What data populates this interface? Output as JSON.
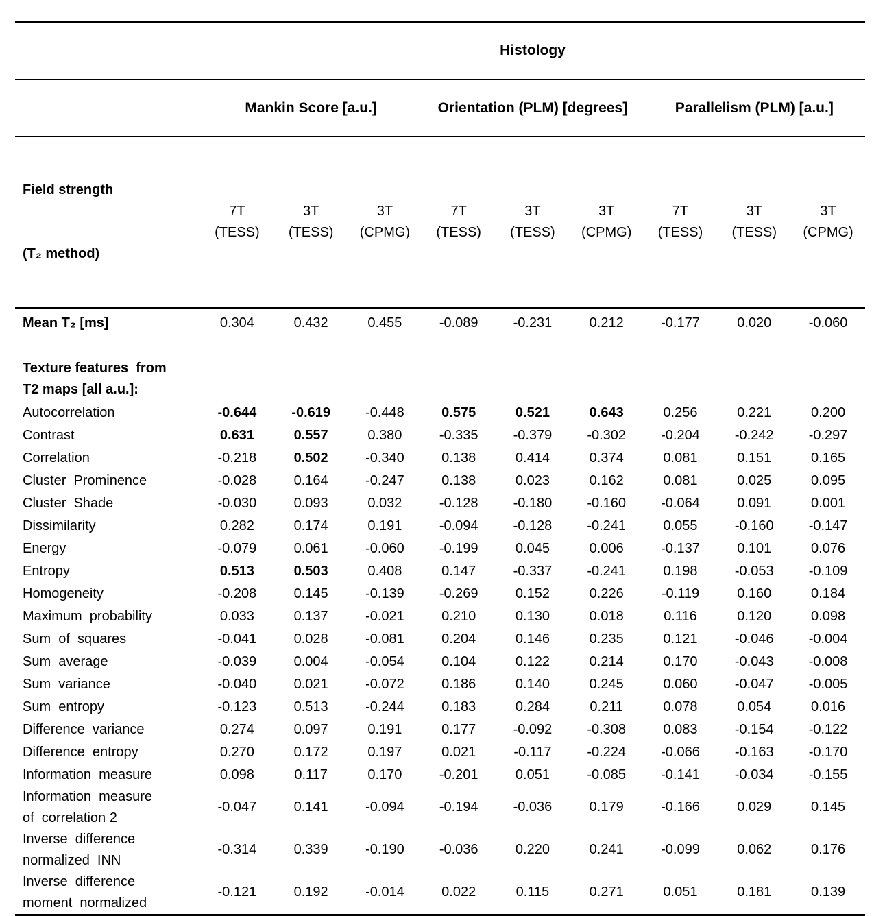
{
  "table": {
    "title": "Histology",
    "groups": [
      {
        "label": "Mankin Score [a.u.]"
      },
      {
        "label": "Orientation (PLM) [degrees]"
      },
      {
        "label": "Parallelism (PLM) [a.u.]"
      }
    ],
    "row_header": [
      "Field strength",
      "(T₂ method)"
    ],
    "columns": [
      {
        "line1": "7T",
        "line2": "(TESS)"
      },
      {
        "line1": "3T",
        "line2": "(TESS)"
      },
      {
        "line1": "3T",
        "line2": "(CPMG)"
      },
      {
        "line1": "7T",
        "line2": "(TESS)"
      },
      {
        "line1": "3T",
        "line2": "(TESS)"
      },
      {
        "line1": "3T",
        "line2": "(CPMG)"
      },
      {
        "line1": "7T",
        "line2": "(TESS)"
      },
      {
        "line1": "3T",
        "line2": "(TESS)"
      },
      {
        "line1": "3T",
        "line2": "(CPMG)"
      }
    ],
    "mean_row": {
      "label": "Mean T₂ [ms]",
      "values": [
        "0.304",
        "0.432",
        "0.455",
        "-0.089",
        "-0.231",
        "0.212",
        "-0.177",
        "0.020",
        "-0.060"
      ]
    },
    "section_header": [
      "Texture features  from",
      "T2 maps [all a.u.]:"
    ],
    "rows": [
      {
        "label": "Autocorrelation",
        "values": [
          "-0.644",
          "-0.619",
          "-0.448",
          "0.575",
          "0.521",
          "0.643",
          "0.256",
          "0.221",
          "0.200"
        ],
        "bold": [
          0,
          1,
          3,
          4,
          5
        ]
      },
      {
        "label": "Contrast",
        "values": [
          "0.631",
          "0.557",
          "0.380",
          "-0.335",
          "-0.379",
          "-0.302",
          "-0.204",
          "-0.242",
          "-0.297"
        ],
        "bold": [
          0,
          1
        ]
      },
      {
        "label": "Correlation",
        "values": [
          "-0.218",
          "0.502",
          "-0.340",
          "0.138",
          "0.414",
          "0.374",
          "0.081",
          "0.151",
          "0.165"
        ],
        "bold": [
          1
        ]
      },
      {
        "label": "Cluster  Prominence",
        "values": [
          "-0.028",
          "0.164",
          "-0.247",
          "0.138",
          "0.023",
          "0.162",
          "0.081",
          "0.025",
          "0.095"
        ]
      },
      {
        "label": "Cluster  Shade",
        "values": [
          "-0.030",
          "0.093",
          "0.032",
          "-0.128",
          "-0.180",
          "-0.160",
          "-0.064",
          "0.091",
          "0.001"
        ]
      },
      {
        "label": "Dissimilarity",
        "values": [
          "0.282",
          "0.174",
          "0.191",
          "-0.094",
          "-0.128",
          "-0.241",
          "0.055",
          "-0.160",
          "-0.147"
        ]
      },
      {
        "label": "Energy",
        "values": [
          "-0.079",
          "0.061",
          "-0.060",
          "-0.199",
          "0.045",
          "0.006",
          "-0.137",
          "0.101",
          "0.076"
        ]
      },
      {
        "label": "Entropy",
        "values": [
          "0.513",
          "0.503",
          "0.408",
          "0.147",
          "-0.337",
          "-0.241",
          "0.198",
          "-0.053",
          "-0.109"
        ],
        "bold": [
          0,
          1
        ]
      },
      {
        "label": "Homogeneity",
        "values": [
          "-0.208",
          "0.145",
          "-0.139",
          "-0.269",
          "0.152",
          "0.226",
          "-0.119",
          "0.160",
          "0.184"
        ]
      },
      {
        "label": "Maximum  probability",
        "values": [
          "0.033",
          "0.137",
          "-0.021",
          "0.210",
          "0.130",
          "0.018",
          "0.116",
          "0.120",
          "0.098"
        ]
      },
      {
        "label": "Sum  of  squares",
        "values": [
          "-0.041",
          "0.028",
          "-0.081",
          "0.204",
          "0.146",
          "0.235",
          "0.121",
          "-0.046",
          "-0.004"
        ]
      },
      {
        "label": "Sum  average",
        "values": [
          "-0.039",
          "0.004",
          "-0.054",
          "0.104",
          "0.122",
          "0.214",
          "0.170",
          "-0.043",
          "-0.008"
        ]
      },
      {
        "label": "Sum  variance",
        "values": [
          "-0.040",
          "0.021",
          "-0.072",
          "0.186",
          "0.140",
          "0.245",
          "0.060",
          "-0.047",
          "-0.005"
        ]
      },
      {
        "label": "Sum  entropy",
        "values": [
          "-0.123",
          "0.513",
          "-0.244",
          "0.183",
          "0.284",
          "0.211",
          "0.078",
          "0.054",
          "0.016"
        ]
      },
      {
        "label": "Difference  variance",
        "values": [
          "0.274",
          "0.097",
          "0.191",
          "0.177",
          "-0.092",
          "-0.308",
          "0.083",
          "-0.154",
          "-0.122"
        ]
      },
      {
        "label": "Difference  entropy",
        "values": [
          "0.270",
          "0.172",
          "0.197",
          "0.021",
          "-0.117",
          "-0.224",
          "-0.066",
          "-0.163",
          "-0.170"
        ]
      },
      {
        "label": "Information  measure",
        "values": [
          "0.098",
          "0.117",
          "0.170",
          "-0.201",
          "0.051",
          "-0.085",
          "-0.141",
          "-0.034",
          "-0.155"
        ]
      },
      {
        "label": "Information  measure\nof  correlation 2",
        "values": [
          "-0.047",
          "0.141",
          "-0.094",
          "-0.194",
          "-0.036",
          "0.179",
          "-0.166",
          "0.029",
          "0.145"
        ]
      },
      {
        "label": "Inverse  difference\nnormalized  INN",
        "values": [
          "-0.314",
          "0.339",
          "-0.190",
          "-0.036",
          "0.220",
          "0.241",
          "-0.099",
          "0.062",
          "0.176"
        ]
      },
      {
        "label": "Inverse  difference\nmoment  normalized",
        "values": [
          "-0.121",
          "0.192",
          "-0.014",
          "0.022",
          "0.115",
          "0.271",
          "0.051",
          "0.181",
          "0.139"
        ]
      }
    ]
  }
}
